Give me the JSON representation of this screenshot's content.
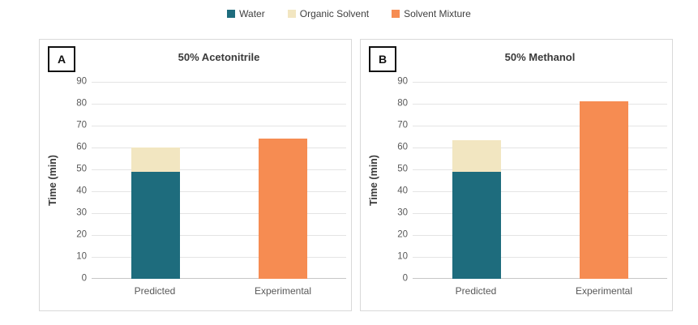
{
  "figure": {
    "background": "#ffffff",
    "grid_color": "#e4e4e4",
    "axis_color": "#c6c6c6",
    "panel_border_color": "#d9d9d9",
    "text_color": "#595959",
    "title_color": "#3a3a3a"
  },
  "legend": {
    "position": "top-center",
    "items": [
      {
        "label": "Water",
        "color": "#1e6c7d"
      },
      {
        "label": "Organic Solvent",
        "color": "#f2e6c1"
      },
      {
        "label": "Solvent Mixture",
        "color": "#f68c52"
      }
    ]
  },
  "chart_data": [
    {
      "type": "bar",
      "stacked": true,
      "panel_label": "A",
      "title": "50% Acetonitrile",
      "categories": [
        "Predicted",
        "Experimental"
      ],
      "series": [
        {
          "name": "Water",
          "color": "#1e6c7d",
          "values": [
            49,
            0
          ]
        },
        {
          "name": "Organic Solvent",
          "color": "#f2e6c1",
          "values": [
            11,
            0
          ]
        },
        {
          "name": "Solvent Mixture",
          "color": "#f68c52",
          "values": [
            0,
            64
          ]
        }
      ],
      "totals": {
        "Predicted": 60,
        "Experimental": 64
      },
      "xlabel": "",
      "ylabel": "Time (min)",
      "ylim": [
        0,
        90
      ],
      "ytick_step": 10,
      "grid": true,
      "legend_position": "shared-top"
    },
    {
      "type": "bar",
      "stacked": true,
      "panel_label": "B",
      "title": "50% Methanol",
      "categories": [
        "Predicted",
        "Experimental"
      ],
      "series": [
        {
          "name": "Water",
          "color": "#1e6c7d",
          "values": [
            49,
            0
          ]
        },
        {
          "name": "Organic Solvent",
          "color": "#f2e6c1",
          "values": [
            14.5,
            0
          ]
        },
        {
          "name": "Solvent Mixture",
          "color": "#f68c52",
          "values": [
            0,
            81
          ]
        }
      ],
      "totals": {
        "Predicted": 63.5,
        "Experimental": 81
      },
      "xlabel": "",
      "ylabel": "Time (min)",
      "ylim": [
        0,
        90
      ],
      "ytick_step": 10,
      "grid": true,
      "legend_position": "shared-top"
    }
  ]
}
